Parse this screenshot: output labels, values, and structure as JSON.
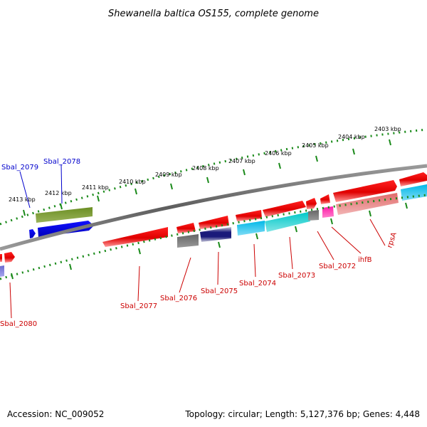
{
  "title": "Shewanella baltica OS155, complete genome",
  "footer": {
    "accession": "Accession: NC_009052",
    "summary": "Topology: circular; Length: 5,127,376 bp; Genes: 4,448"
  },
  "colors": {
    "backbone": "#777777",
    "tick_green": "#1a8a1a",
    "label_red": "#cc0000",
    "label_blue": "#0000cc"
  },
  "kbp_labels": [
    "2413 kbp",
    "2412 kbp",
    "2411 kbp",
    "2410 kbp",
    "2409 kbp",
    "2408 kbp",
    "2407 kbp",
    "2406 kbp",
    "2405 kbp",
    "2404 kbp",
    "2403 kbp"
  ],
  "gene_labels": {
    "sbal_2079": "Sbal_2079",
    "sbal_2078": "Sbal_2078",
    "sbal_2080": "Sbal_2080",
    "sbal_2077": "Sbal_2077",
    "sbal_2076": "Sbal_2076",
    "sbal_2075": "Sbal_2075",
    "sbal_2074": "Sbal_2074",
    "sbal_2073": "Sbal_2073",
    "sbal_2072": "Sbal_2072",
    "ihfb": "ihfB",
    "rpsa": "rpsA"
  }
}
